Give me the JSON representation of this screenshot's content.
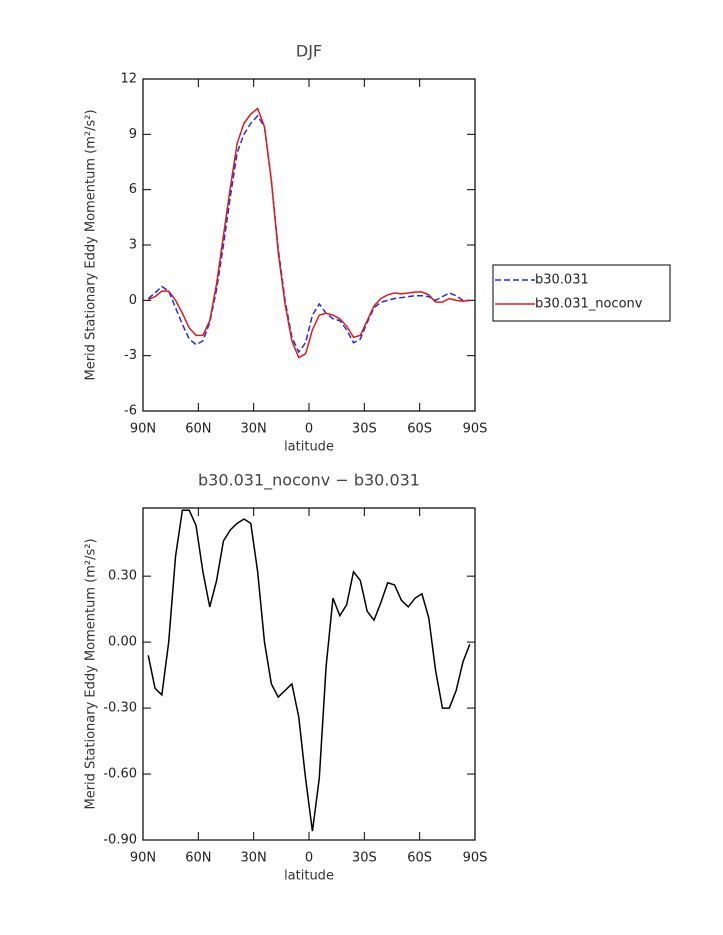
{
  "chart_data": [
    {
      "type": "line",
      "title": "DJF",
      "x_label": "latitude",
      "y_label": "Merid Stationary Eddy Momentum (m²/s²)",
      "x": [
        87.16,
        83.48,
        79.78,
        76.07,
        72.36,
        68.65,
        64.94,
        61.23,
        57.52,
        53.81,
        50.1,
        46.39,
        42.68,
        38.97,
        35.26,
        31.55,
        27.84,
        24.13,
        20.41,
        16.7,
        12.99,
        9.28,
        5.57,
        1.86,
        -1.86,
        -5.57,
        -9.28,
        -12.99,
        -16.7,
        -20.41,
        -24.13,
        -27.84,
        -31.55,
        -35.26,
        -38.97,
        -42.68,
        -46.39,
        -50.1,
        -53.81,
        -57.52,
        -61.23,
        -64.94,
        -68.65,
        -72.36,
        -76.07,
        -79.78,
        -83.48,
        -87.16
      ],
      "series": [
        {
          "name": "b30.031",
          "color": "#1f2fe0",
          "line_style": "dashed",
          "values": [
            0.1,
            0.4,
            0.75,
            0.5,
            -0.4,
            -1.3,
            -2.1,
            -2.4,
            -2.2,
            -1.2,
            0.6,
            3.0,
            5.6,
            8.0,
            9.0,
            9.6,
            10.0,
            9.4,
            6.5,
            2.8,
            0.0,
            -2.0,
            -2.8,
            -2.3,
            -0.8,
            -0.2,
            -0.7,
            -1.0,
            -1.1,
            -1.6,
            -2.3,
            -2.1,
            -1.2,
            -0.4,
            -0.1,
            0.0,
            0.1,
            0.15,
            0.2,
            0.25,
            0.25,
            0.2,
            0.0,
            0.2,
            0.4,
            0.25,
            0.0,
            0.0
          ]
        },
        {
          "name": "b30.031_noconv",
          "color": "#e01a1a",
          "line_style": "solid",
          "values": [
            0.05,
            0.2,
            0.5,
            0.5,
            0.0,
            -0.7,
            -1.5,
            -1.9,
            -1.9,
            -1.1,
            0.9,
            3.5,
            6.1,
            8.5,
            9.6,
            10.1,
            10.4,
            9.4,
            6.5,
            2.6,
            -0.2,
            -2.2,
            -3.1,
            -2.9,
            -1.6,
            -0.8,
            -0.7,
            -0.8,
            -1.0,
            -1.4,
            -2.0,
            -1.9,
            -1.1,
            -0.3,
            0.1,
            0.3,
            0.4,
            0.35,
            0.4,
            0.45,
            0.45,
            0.3,
            -0.1,
            -0.1,
            0.1,
            0.0,
            -0.05,
            0.0
          ]
        }
      ],
      "xlim": [
        90,
        -90
      ],
      "xticks": [
        {
          "value": 90,
          "label": "90N"
        },
        {
          "value": 60,
          "label": "60N"
        },
        {
          "value": 30,
          "label": "30N"
        },
        0,
        {
          "value": -30,
          "label": "30S"
        },
        {
          "value": -60,
          "label": "60S"
        },
        {
          "value": -90,
          "label": "90S"
        }
      ],
      "ylim": [
        -6,
        12
      ],
      "yticks": [
        -6,
        -3,
        0,
        3,
        6,
        9,
        12
      ],
      "legend": "right"
    },
    {
      "type": "line",
      "title": "b30.031_noconv − b30.031",
      "x_label": "latitude",
      "y_label": "Merid Stationary Eddy Momentum (m²/s²)",
      "x": [
        87.16,
        83.48,
        79.78,
        76.07,
        72.36,
        68.65,
        64.94,
        61.23,
        57.52,
        53.81,
        50.1,
        46.39,
        42.68,
        38.97,
        35.26,
        31.55,
        27.84,
        24.13,
        20.41,
        16.7,
        12.99,
        9.28,
        5.57,
        1.86,
        -1.86,
        -5.57,
        -9.28,
        -12.99,
        -16.7,
        -20.41,
        -24.13,
        -27.84,
        -31.55,
        -35.26,
        -38.97,
        -42.68,
        -46.39,
        -50.1,
        -53.81,
        -57.52,
        -61.23,
        -64.94,
        -68.65,
        -72.36,
        -76.07,
        -79.78,
        -83.48,
        -87.16
      ],
      "color": "#000000",
      "values": [
        -0.06,
        -0.21,
        -0.24,
        0.0,
        0.39,
        0.6,
        0.6,
        0.53,
        0.32,
        0.16,
        0.28,
        0.46,
        0.51,
        0.54,
        0.56,
        0.54,
        0.32,
        0.0,
        -0.19,
        -0.25,
        -0.22,
        -0.19,
        -0.34,
        -0.62,
        -0.86,
        -0.62,
        -0.11,
        0.2,
        0.12,
        0.17,
        0.32,
        0.28,
        0.14,
        0.1,
        0.18,
        0.27,
        0.26,
        0.19,
        0.16,
        0.2,
        0.22,
        0.11,
        -0.13,
        -0.3,
        -0.3,
        -0.22,
        -0.09,
        -0.01
      ],
      "xlim": [
        90,
        -90
      ],
      "xticks": [
        {
          "value": 90,
          "label": "90N"
        },
        {
          "value": 60,
          "label": "60N"
        },
        {
          "value": 30,
          "label": "30N"
        },
        0,
        {
          "value": -30,
          "label": "30S"
        },
        {
          "value": -60,
          "label": "60S"
        },
        {
          "value": -90,
          "label": "90S"
        }
      ],
      "ylim": [
        -0.9,
        0.61
      ],
      "yticks": [
        {
          "value": -0.9,
          "label": "-0.90"
        },
        {
          "value": -0.6,
          "label": "-0.60"
        },
        {
          "value": -0.3,
          "label": "-0.30"
        },
        {
          "value": 0,
          "label": "0.00"
        },
        {
          "value": 0.3,
          "label": "0.30"
        }
      ]
    }
  ]
}
